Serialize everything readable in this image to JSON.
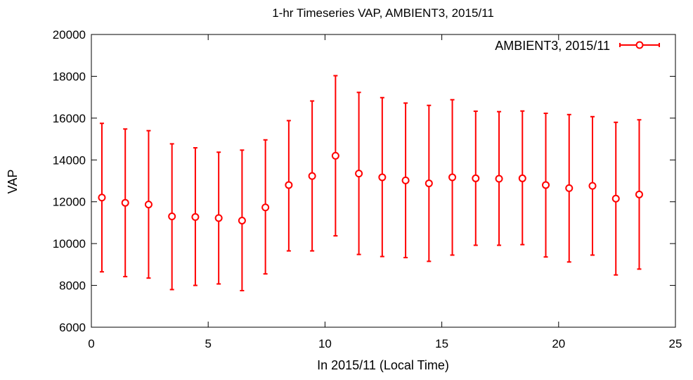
{
  "chart_data": {
    "type": "scatter",
    "title": "1-hr Timeseries VAP, AMBIENT3, 2015/11",
    "xlabel": "In 2015/11 (Local Time)",
    "ylabel": "VAP",
    "xlim": [
      0,
      25
    ],
    "ylim": [
      6000,
      20000
    ],
    "xticks": [
      0,
      5,
      10,
      15,
      20,
      25
    ],
    "yticks": [
      6000,
      8000,
      10000,
      12000,
      14000,
      16000,
      18000,
      20000
    ],
    "grid": false,
    "legend_position": "top-right",
    "color": "#ff0000",
    "series": [
      {
        "name": "AMBIENT3, 2015/11",
        "x": [
          0.45,
          1.45,
          2.45,
          3.45,
          4.45,
          5.45,
          6.45,
          7.45,
          8.45,
          9.45,
          10.45,
          11.45,
          12.45,
          13.45,
          14.45,
          15.45,
          16.45,
          17.45,
          18.45,
          19.45,
          20.45,
          21.45,
          22.45,
          23.45
        ],
        "y": [
          12200,
          11950,
          11870,
          11300,
          11270,
          11220,
          11100,
          11730,
          12800,
          13230,
          14200,
          13350,
          13170,
          13020,
          12880,
          13170,
          13120,
          13100,
          13120,
          12800,
          12650,
          12760,
          12150,
          12350
        ],
        "y_low": [
          8650,
          8420,
          8350,
          7800,
          8000,
          8070,
          7750,
          8550,
          9650,
          9650,
          10370,
          9480,
          9380,
          9330,
          9150,
          9450,
          9920,
          9920,
          9950,
          9360,
          9120,
          9450,
          8500,
          8780
        ],
        "y_high": [
          15750,
          15480,
          15400,
          14770,
          14580,
          14370,
          14470,
          14960,
          15880,
          16820,
          18030,
          17230,
          16980,
          16720,
          16610,
          16880,
          16330,
          16310,
          16340,
          16230,
          16170,
          16070,
          15800,
          15920
        ]
      }
    ]
  }
}
